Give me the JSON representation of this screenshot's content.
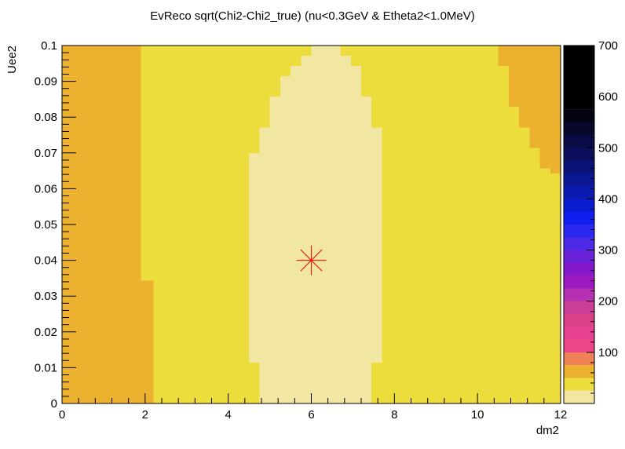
{
  "chart_data": {
    "type": "heatmap",
    "title": "EvReco sqrt(Chi2-Chi2_true) (nu<0.3GeV & Etheta2<1.0MeV)",
    "xlabel": "dm2",
    "ylabel": "Uee2",
    "xlim": [
      0,
      12
    ],
    "ylim": [
      0,
      0.1
    ],
    "zlim": [
      0,
      700
    ],
    "x_ticks": [
      0,
      2,
      4,
      6,
      8,
      10,
      12
    ],
    "x_tick_labels": [
      "0",
      "2",
      "4",
      "6",
      "8",
      "10",
      "12"
    ],
    "y_ticks": [
      0,
      0.01,
      0.02,
      0.03,
      0.04,
      0.05,
      0.06,
      0.07,
      0.08,
      0.09,
      0.1
    ],
    "y_tick_labels": [
      "0",
      "0.01",
      "0.02",
      "0.03",
      "0.04",
      "0.05",
      "0.06",
      "0.07",
      "0.08",
      "0.09",
      "0.1"
    ],
    "z_ticks": [
      100,
      200,
      300,
      400,
      500,
      600,
      700
    ],
    "z_tick_labels": [
      "100",
      "200",
      "300",
      "400",
      "500",
      "600",
      "700"
    ],
    "grid": false,
    "nx": 48,
    "ny": 35,
    "levels": [
      {
        "z": [
          0,
          25
        ],
        "color": "#f2e7a2"
      },
      {
        "z": [
          25,
          50
        ],
        "color": "#eddd3c"
      },
      {
        "z": [
          50,
          75
        ],
        "color": "#ecb22f"
      },
      {
        "z": [
          75,
          100
        ],
        "color": "#ee8155"
      },
      {
        "z": [
          100,
          125
        ],
        "color": "#ee4588"
      },
      {
        "z": [
          125,
          150
        ],
        "color": "#e8418f"
      },
      {
        "z": [
          150,
          175
        ],
        "color": "#da4188"
      },
      {
        "z": [
          175,
          200
        ],
        "color": "#cc3f98"
      },
      {
        "z": [
          200,
          225
        ],
        "color": "#b530b3"
      },
      {
        "z": [
          225,
          250
        ],
        "color": "#9e18c1"
      },
      {
        "z": [
          250,
          275
        ],
        "color": "#8419cc"
      },
      {
        "z": [
          275,
          300
        ],
        "color": "#6a23d8"
      },
      {
        "z": [
          300,
          325
        ],
        "color": "#4c29e4"
      },
      {
        "z": [
          325,
          350
        ],
        "color": "#2a29ef"
      },
      {
        "z": [
          350,
          375
        ],
        "color": "#101ef0"
      },
      {
        "z": [
          375,
          400
        ],
        "color": "#0a1cce"
      },
      {
        "z": [
          400,
          425
        ],
        "color": "#0b1bb0"
      },
      {
        "z": [
          425,
          450
        ],
        "color": "#0b1692"
      },
      {
        "z": [
          450,
          475
        ],
        "color": "#0b1276"
      },
      {
        "z": [
          475,
          500
        ],
        "color": "#0b0f5c"
      },
      {
        "z": [
          500,
          525
        ],
        "color": "#0a0b44"
      },
      {
        "z": [
          525,
          550
        ],
        "color": "#07072c"
      },
      {
        "z": [
          550,
          575
        ],
        "color": "#020213"
      }
    ],
    "regions": [
      {
        "level": 2,
        "description_boundary_x_per_row": "left band"
      },
      {
        "level": 1
      },
      {
        "level": 0
      }
    ],
    "left_band_xmax_by_y": [
      {
        "y": [
          0.0,
          0.0043
        ],
        "x": 2.2
      },
      {
        "y": [
          0.0043,
          0.0343
        ],
        "x": 2.2
      },
      {
        "y": [
          0.0343,
          0.1
        ],
        "x": 1.9
      }
    ],
    "inner_region_rows": [
      {
        "y": [
          0.0,
          0.0043
        ],
        "x": [
          4.75,
          7.45
        ]
      },
      {
        "y": [
          0.0043,
          0.0114
        ],
        "x": [
          4.75,
          7.45
        ]
      },
      {
        "y": [
          0.0114,
          0.07
        ],
        "x": [
          4.5,
          7.7
        ]
      },
      {
        "y": [
          0.07,
          0.0771
        ],
        "x": [
          4.75,
          7.7
        ]
      },
      {
        "y": [
          0.0771,
          0.0857
        ],
        "x": [
          5.0,
          7.45
        ]
      },
      {
        "y": [
          0.0857,
          0.0914
        ],
        "x": [
          5.25,
          7.2
        ]
      },
      {
        "y": [
          0.0914,
          0.0943
        ],
        "x": [
          5.5,
          7.2
        ]
      },
      {
        "y": [
          0.0943,
          0.0971
        ],
        "x": [
          5.75,
          6.95
        ]
      },
      {
        "y": [
          0.0971,
          0.1
        ],
        "x": [
          6.0,
          6.7
        ]
      }
    ],
    "right_band_rows": [
      {
        "y": [
          0.0,
          0.0643
        ],
        "x": 12.0
      },
      {
        "y": [
          0.0643,
          0.0657
        ],
        "x": 11.75
      },
      {
        "y": [
          0.0657,
          0.0714
        ],
        "x": 11.5
      },
      {
        "y": [
          0.0714,
          0.0771
        ],
        "x": 11.25
      },
      {
        "y": [
          0.0771,
          0.0829
        ],
        "x": 11.0
      },
      {
        "y": [
          0.0829,
          0.0943
        ],
        "x": 10.75
      },
      {
        "y": [
          0.0943,
          0.1
        ],
        "x": 10.5
      }
    ],
    "marker": {
      "x": 6.0,
      "y": 0.04,
      "color": "#e0251e",
      "symbol": "star"
    }
  }
}
